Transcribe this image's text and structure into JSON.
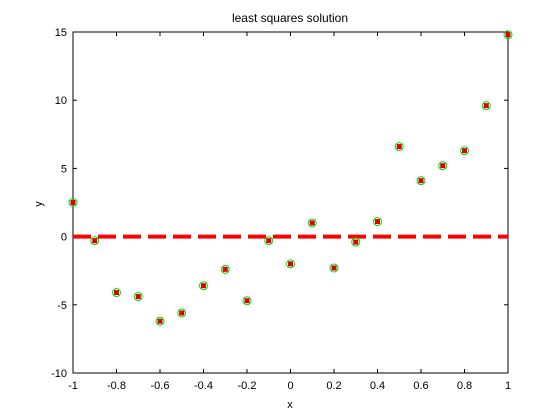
{
  "chart_data": {
    "type": "scatter",
    "title": "least squares  solution",
    "xlabel": "x",
    "ylabel": "y",
    "xlim": [
      -1,
      1
    ],
    "ylim": [
      -10,
      15
    ],
    "xticks": [
      "-1",
      "-0.8",
      "-0.6",
      "-0.4",
      "-0.2",
      "0",
      "0.2",
      "0.4",
      "0.6",
      "0.8",
      "1"
    ],
    "yticks": [
      "-10",
      "-5",
      "0",
      "5",
      "10",
      "15"
    ],
    "grid": false,
    "legend": "none",
    "series": [
      {
        "marker": "open-circle",
        "color": "#00dd00",
        "x": [
          -1,
          -0.9,
          -0.8,
          -0.7,
          -0.6,
          -0.5,
          -0.4,
          -0.3,
          -0.2,
          -0.1,
          0,
          0.1,
          0.2,
          0.3,
          0.4,
          0.5,
          0.6,
          0.7,
          0.8,
          0.9,
          1
        ],
        "y": [
          2.5,
          -0.3,
          -4.1,
          -4.4,
          -6.2,
          -5.6,
          -3.6,
          -2.4,
          -4.7,
          -0.3,
          -2.0,
          1.0,
          -2.3,
          -0.4,
          1.1,
          6.6,
          4.1,
          5.2,
          6.3,
          9.6,
          14.8
        ]
      },
      {
        "marker": "filled-square",
        "color": "#dd0000",
        "x": [
          -1,
          -0.9,
          -0.8,
          -0.7,
          -0.6,
          -0.5,
          -0.4,
          -0.3,
          -0.2,
          -0.1,
          0,
          0.1,
          0.2,
          0.3,
          0.4,
          0.5,
          0.6,
          0.7,
          0.8,
          0.9,
          1
        ],
        "y": [
          2.5,
          -0.3,
          -4.1,
          -4.4,
          -6.2,
          -5.6,
          -3.6,
          -2.4,
          -4.7,
          -0.3,
          -2.0,
          1.0,
          -2.3,
          -0.4,
          1.1,
          6.6,
          4.1,
          5.2,
          6.3,
          9.6,
          14.8
        ]
      },
      {
        "style": "dashed-line",
        "color": "#ff0000",
        "x": [
          -1,
          1
        ],
        "y": [
          0,
          0
        ]
      }
    ]
  }
}
